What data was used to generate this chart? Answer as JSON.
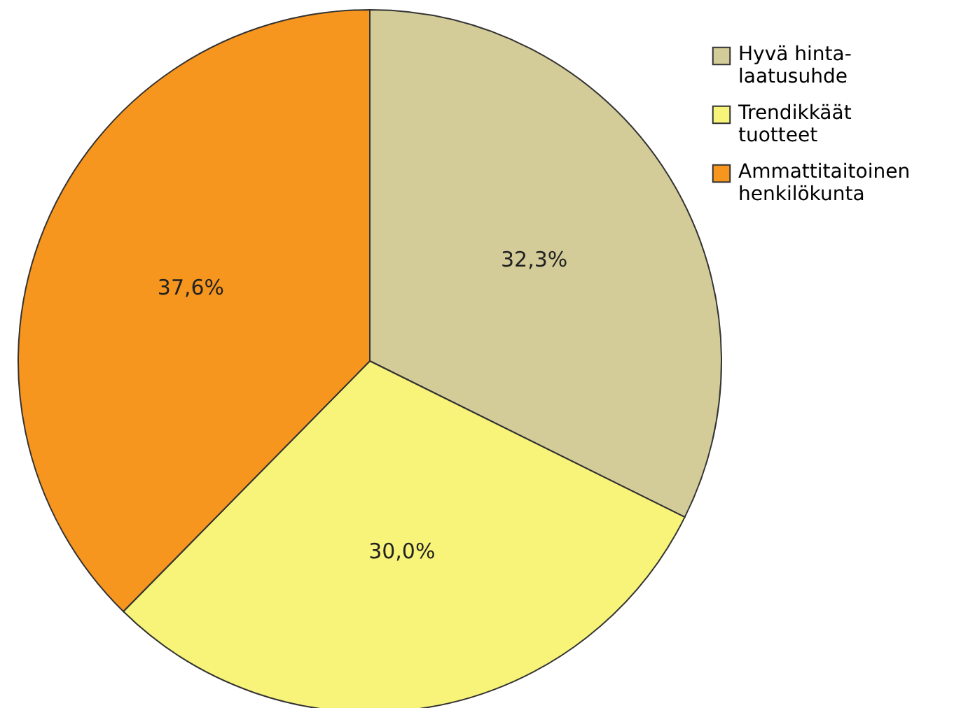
{
  "chart_data": {
    "type": "pie",
    "categories": [
      "Hyvä hinta-laatusuhde",
      "Trendikkäät tuotteet",
      "Ammattitaitoinen henkilökunta"
    ],
    "values": [
      32.3,
      30.0,
      37.6
    ],
    "colors": [
      "#d3cc98",
      "#f8f47a",
      "#f7961e"
    ],
    "value_labels": [
      "32,3%",
      "30,0%",
      "37,6%"
    ],
    "legend": "top right"
  }
}
